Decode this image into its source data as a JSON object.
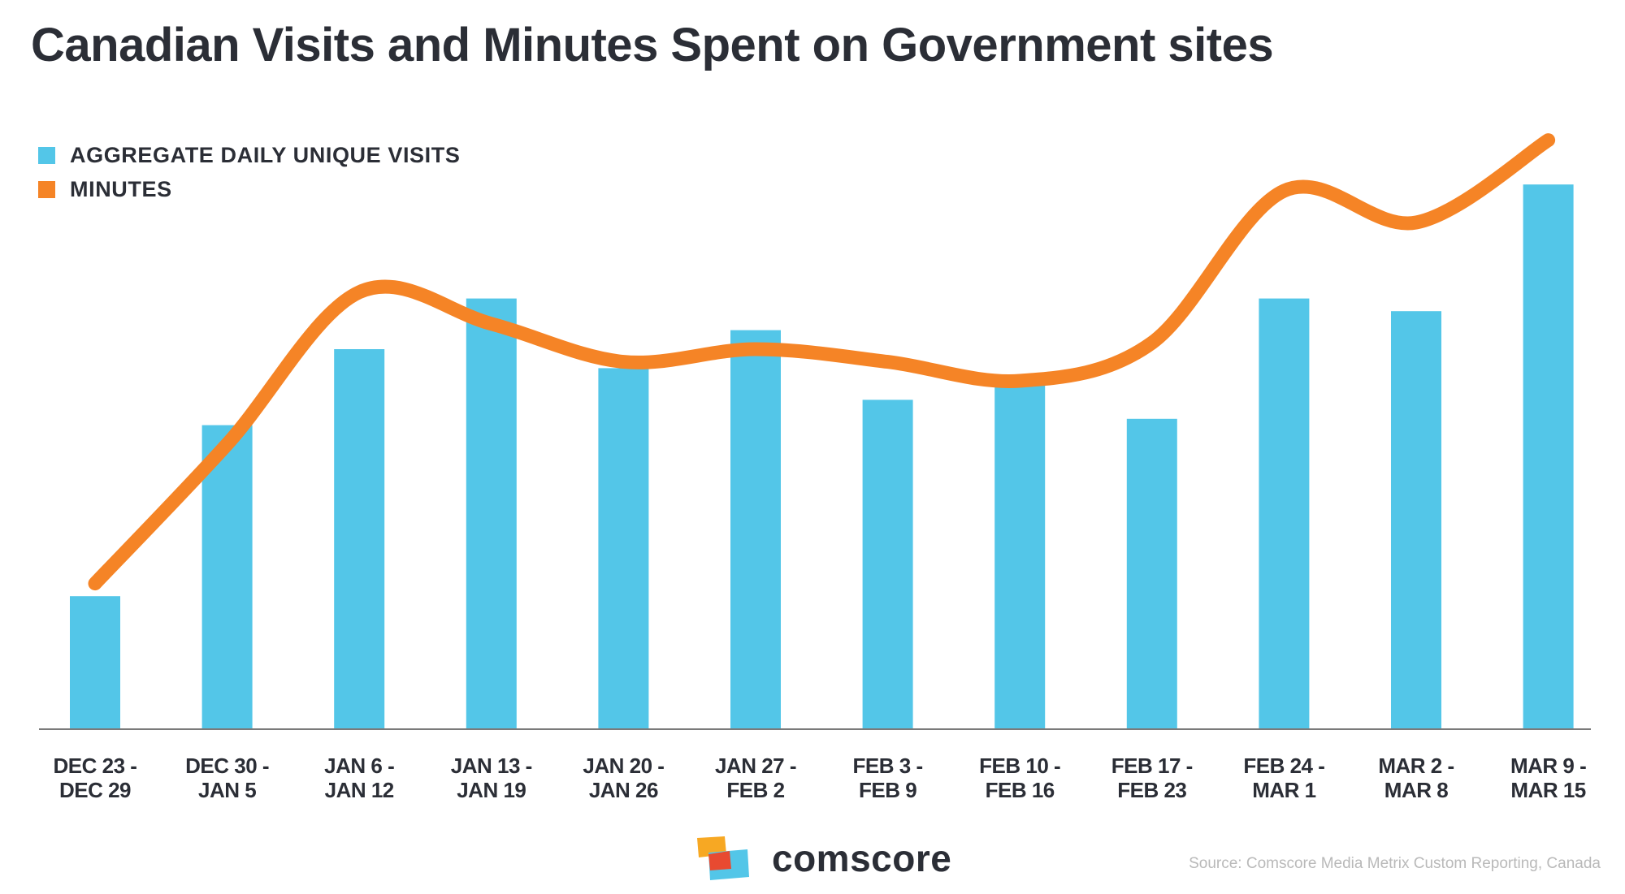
{
  "colors": {
    "visits": "#53c6e8",
    "minutes": "#f58426",
    "text": "#2b2e36",
    "axis": "#7a7a7a",
    "source": "#b9b9b9",
    "logo_yellow": "#f7a823",
    "logo_red": "#e84a31",
    "logo_blue": "#53c6e8"
  },
  "chart_data": {
    "type": "bar",
    "title": "Canadian Visits and Minutes Spent on Government sites",
    "categories": [
      [
        "DEC 23  -",
        "DEC 29"
      ],
      [
        "DEC 30 -",
        "JAN 5"
      ],
      [
        "JAN 6 -",
        "JAN 12"
      ],
      [
        "JAN 13 -",
        "JAN 19"
      ],
      [
        "JAN 20 -",
        "JAN 26"
      ],
      [
        "JAN 27 -",
        "FEB 2"
      ],
      [
        "FEB 3 -",
        "FEB 9"
      ],
      [
        "FEB 10 -",
        "FEB 16"
      ],
      [
        "FEB 17 -",
        "FEB 23"
      ],
      [
        "FEB 24 -",
        "MAR 1"
      ],
      [
        "MAR 2 -",
        "MAR 8"
      ],
      [
        "MAR 9 -",
        "MAR 15"
      ]
    ],
    "series": [
      {
        "name": "AGGREGATE DAILY UNIQUE VISITS",
        "kind": "bar",
        "color": "#53c6e8",
        "values": [
          21,
          48,
          60,
          68,
          57,
          63,
          52,
          56,
          49,
          68,
          66,
          86
        ]
      },
      {
        "name": "MINUTES",
        "kind": "line",
        "color": "#f58426",
        "values": [
          23,
          45,
          69,
          64,
          58,
          60,
          58,
          55,
          61,
          85,
          80,
          93
        ]
      }
    ],
    "xlabel": "",
    "ylabel": "",
    "ylim": [
      0,
      100
    ],
    "grid": false,
    "legend": "top-left",
    "axis_labels_visible": false
  },
  "brand": {
    "logo_text": "comscore"
  },
  "source": "Source: Comscore Media Metrix Custom Reporting, Canada"
}
